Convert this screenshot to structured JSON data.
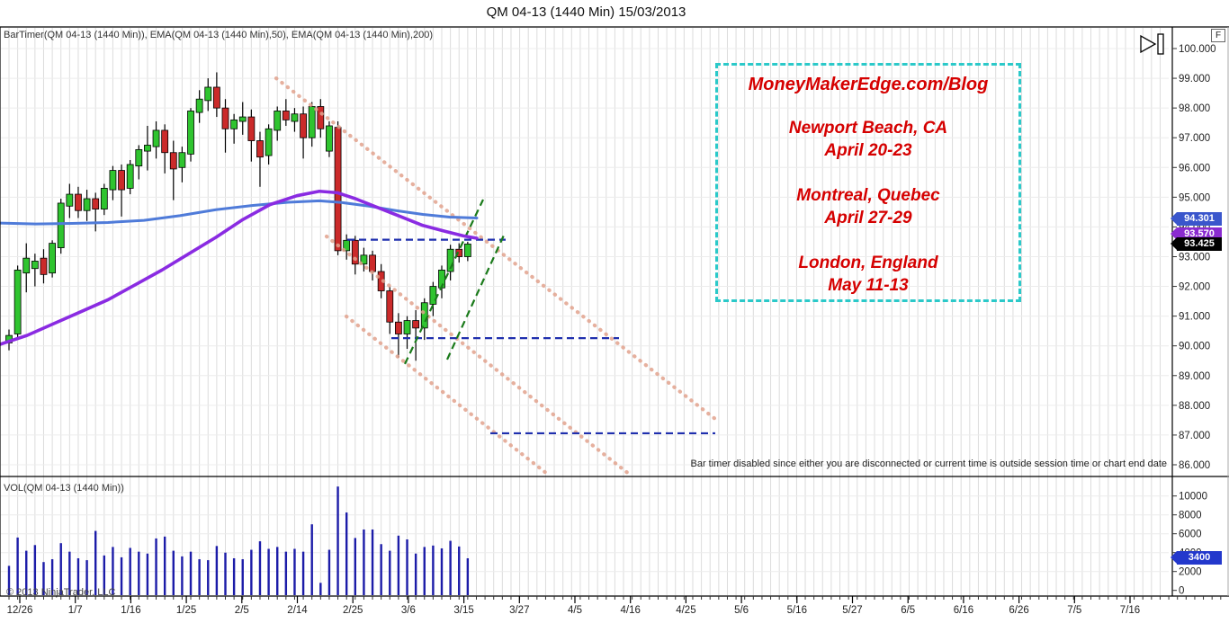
{
  "window": {
    "title": "QM 04-13 (1440 Min)  15/03/2013"
  },
  "price_pane": {
    "indicator_label": "BarTimer(QM 04-13 (1440 Min)), EMA(QM 04-13 (1440 Min),50), EMA(QM 04-13 (1440 Min),200)",
    "bar_timer_message": "Bar timer disabled since either you are disconnected or current time is outside session time or chart end date",
    "fix_scale_button": "F",
    "tags": {
      "ema50": "94.301",
      "ema200_partial": "93.570",
      "last_price": "93.425"
    },
    "tag_colors": {
      "ema50": "#3a56cc",
      "ema200": "#8a2bd0",
      "last_price": "#000000"
    }
  },
  "volume_pane": {
    "label": "VOL(QM 04-13 (1440 Min))",
    "last_volume_tag": "3400",
    "tag_color": "#2338cc"
  },
  "copyright": "© 2013 NinjaTrader, LLC",
  "annotation_box": {
    "title": "MoneyMakerEdge.com/Blog",
    "events": [
      {
        "location": "Newport Beach, CA",
        "dates": "April 20-23"
      },
      {
        "location": "Montreal, Quebec",
        "dates": "April 27-29"
      },
      {
        "location": "London, England",
        "dates": "May 11-13"
      }
    ],
    "border_color": "#2bc9c9",
    "text_color": "#d50000"
  },
  "chart_data": {
    "type": "candlestick",
    "instrument": "QM 04-13 (1440 Min)",
    "price_axis": {
      "min": 86,
      "max": 100,
      "step": 1,
      "labels": [
        "100.000",
        "99.000",
        "98.000",
        "97.000",
        "96.000",
        "95.000",
        "94.000",
        "93.000",
        "92.000",
        "91.000",
        "90.000",
        "89.000",
        "88.000",
        "87.000",
        "86.000"
      ]
    },
    "volume_axis": {
      "min": 0,
      "max": 10000,
      "step": 2000,
      "labels": [
        "10000",
        "8000",
        "6000",
        "4000",
        "2000",
        "0"
      ]
    },
    "time_axis": {
      "labels": [
        "12/26",
        "1/7",
        "1/16",
        "1/25",
        "2/5",
        "2/14",
        "2/25",
        "3/6",
        "3/15",
        "3/27",
        "4/5",
        "4/16",
        "4/25",
        "5/6",
        "5/16",
        "5/27",
        "6/5",
        "6/16",
        "6/26",
        "7/5",
        "7/16"
      ]
    },
    "candles_ohlc": [
      [
        90.1,
        90.55,
        89.85,
        90.35
      ],
      [
        90.4,
        92.7,
        90.2,
        92.55
      ],
      [
        92.45,
        93.45,
        91.8,
        92.95
      ],
      [
        92.6,
        93.1,
        92.0,
        92.85
      ],
      [
        92.95,
        93.25,
        92.1,
        92.4
      ],
      [
        92.45,
        93.55,
        92.3,
        93.45
      ],
      [
        93.3,
        94.95,
        93.1,
        94.8
      ],
      [
        94.7,
        95.45,
        94.3,
        95.1
      ],
      [
        95.1,
        95.35,
        94.3,
        94.55
      ],
      [
        94.55,
        95.25,
        94.2,
        94.95
      ],
      [
        94.95,
        95.15,
        93.85,
        94.6
      ],
      [
        94.6,
        95.45,
        94.4,
        95.3
      ],
      [
        95.25,
        96.05,
        94.9,
        95.9
      ],
      [
        95.9,
        96.1,
        94.35,
        95.25
      ],
      [
        95.3,
        96.25,
        95.1,
        96.1
      ],
      [
        96.05,
        96.75,
        95.6,
        96.6
      ],
      [
        96.55,
        97.4,
        95.9,
        96.75
      ],
      [
        96.7,
        97.55,
        96.3,
        97.25
      ],
      [
        97.25,
        97.45,
        95.8,
        96.5
      ],
      [
        96.5,
        96.9,
        94.9,
        95.95
      ],
      [
        96.0,
        96.7,
        95.5,
        96.5
      ],
      [
        96.45,
        98.0,
        96.2,
        97.9
      ],
      [
        97.85,
        98.6,
        97.5,
        98.3
      ],
      [
        98.25,
        99.0,
        97.9,
        98.7
      ],
      [
        98.7,
        99.2,
        97.7,
        98.0
      ],
      [
        98.0,
        98.3,
        96.5,
        97.3
      ],
      [
        97.3,
        97.8,
        96.8,
        97.6
      ],
      [
        97.55,
        98.2,
        97.1,
        97.7
      ],
      [
        97.7,
        97.95,
        96.2,
        96.9
      ],
      [
        96.9,
        97.2,
        95.35,
        96.35
      ],
      [
        96.4,
        97.45,
        96.1,
        97.3
      ],
      [
        97.25,
        98.05,
        96.9,
        97.9
      ],
      [
        97.9,
        98.3,
        97.4,
        97.6
      ],
      [
        97.55,
        98.0,
        97.2,
        97.8
      ],
      [
        97.8,
        98.05,
        96.3,
        97.0
      ],
      [
        97.0,
        98.2,
        96.7,
        98.05
      ],
      [
        98.05,
        98.3,
        97.0,
        97.3
      ],
      [
        96.55,
        97.55,
        96.35,
        97.4
      ],
      [
        97.35,
        97.55,
        93.05,
        93.2
      ],
      [
        93.2,
        93.75,
        92.9,
        93.55
      ],
      [
        93.55,
        93.7,
        92.4,
        92.75
      ],
      [
        92.75,
        93.3,
        92.5,
        93.05
      ],
      [
        93.05,
        93.2,
        92.2,
        92.5
      ],
      [
        92.5,
        92.75,
        91.6,
        91.85
      ],
      [
        91.85,
        92.0,
        90.4,
        90.8
      ],
      [
        90.8,
        91.1,
        89.6,
        90.4
      ],
      [
        90.4,
        91.0,
        89.9,
        90.85
      ],
      [
        90.85,
        91.2,
        89.5,
        90.6
      ],
      [
        90.6,
        91.6,
        90.2,
        91.45
      ],
      [
        91.4,
        92.15,
        91.0,
        92.0
      ],
      [
        91.95,
        92.7,
        91.6,
        92.55
      ],
      [
        92.5,
        93.4,
        92.2,
        93.25
      ],
      [
        93.25,
        93.45,
        92.8,
        93.0
      ],
      [
        93.0,
        93.5,
        92.85,
        93.425
      ]
    ],
    "volumes": [
      2600,
      5600,
      4200,
      4800,
      3000,
      3300,
      5000,
      4100,
      3400,
      3200,
      6300,
      3700,
      4600,
      3500,
      4500,
      4100,
      3900,
      5500,
      5700,
      4200,
      3600,
      4100,
      3300,
      3200,
      4700,
      4000,
      3400,
      3300,
      4300,
      5200,
      4400,
      4600,
      4100,
      4400,
      4100,
      7000,
      800,
      4300,
      11000,
      8250,
      5550,
      6450,
      6450,
      4900,
      4200,
      5800,
      5400,
      3900,
      4600,
      4750,
      4450,
      5250,
      4650,
      3400
    ],
    "ema50": {
      "color": "#4f7bd9",
      "points": [
        [
          0,
          94.13
        ],
        [
          40,
          94.1
        ],
        [
          80,
          94.12
        ],
        [
          120,
          94.15
        ],
        [
          160,
          94.22
        ],
        [
          200,
          94.38
        ],
        [
          240,
          94.58
        ],
        [
          280,
          94.72
        ],
        [
          320,
          94.83
        ],
        [
          355,
          94.88
        ],
        [
          380,
          94.82
        ],
        [
          410,
          94.7
        ],
        [
          440,
          94.55
        ],
        [
          470,
          94.42
        ],
        [
          500,
          94.33
        ],
        [
          530,
          94.3
        ]
      ]
    },
    "ema200": {
      "color": "#8a2be2",
      "points": [
        [
          0,
          90.05
        ],
        [
          30,
          90.35
        ],
        [
          60,
          90.75
        ],
        [
          90,
          91.15
        ],
        [
          120,
          91.55
        ],
        [
          150,
          92.05
        ],
        [
          180,
          92.55
        ],
        [
          210,
          93.1
        ],
        [
          240,
          93.65
        ],
        [
          270,
          94.25
        ],
        [
          300,
          94.75
        ],
        [
          330,
          95.05
        ],
        [
          355,
          95.2
        ],
        [
          375,
          95.15
        ],
        [
          395,
          94.95
        ],
        [
          420,
          94.65
        ],
        [
          445,
          94.35
        ],
        [
          470,
          94.05
        ],
        [
          495,
          93.85
        ],
        [
          515,
          93.7
        ],
        [
          530,
          93.62
        ]
      ]
    },
    "downtrend_dotted": {
      "color": "#e2a38e",
      "lines": [
        [
          307,
          99.0,
          795,
          87.54
        ],
        [
          363,
          93.68,
          700,
          85.67
        ],
        [
          385,
          90.99,
          608,
          85.7
        ]
      ]
    },
    "uptrend_dashed": {
      "color": "#1a7a1a",
      "lines": [
        [
          450,
          89.39,
          537,
          94.92
        ],
        [
          497,
          89.54,
          560,
          93.72
        ]
      ]
    },
    "support_dashed": {
      "color": "#1f2fae",
      "lines": [
        [
          386,
          93.57,
          562,
          93.57
        ],
        [
          435,
          90.26,
          688,
          90.26
        ],
        [
          545,
          87.06,
          795,
          87.06
        ]
      ]
    },
    "colors": {
      "up": "#2fc42f",
      "down": "#cb2a2a",
      "wick": "#000000",
      "volume": "#1c1ca8"
    }
  }
}
